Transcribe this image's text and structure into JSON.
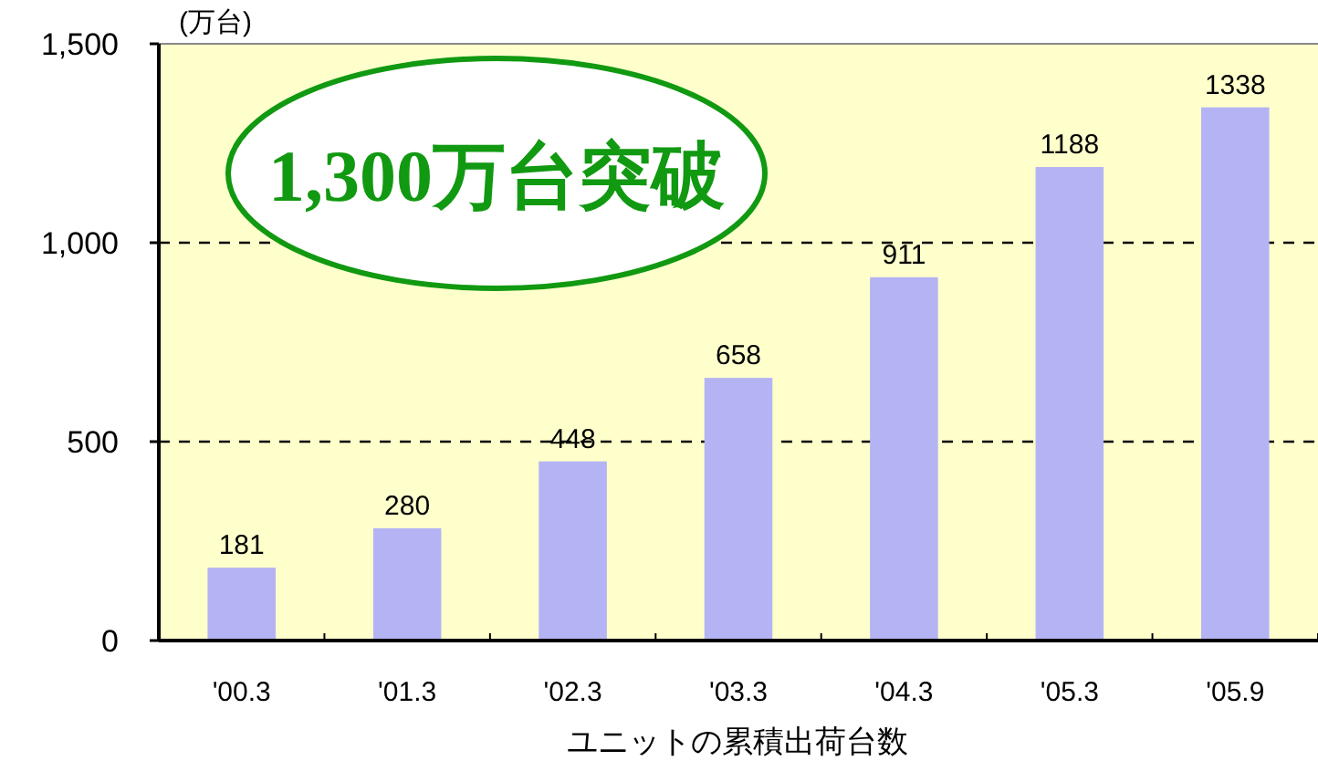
{
  "chart_data": {
    "type": "bar",
    "categories": [
      "'00.3",
      "'01.3",
      "'02.3",
      "'03.3",
      "'04.3",
      "'05.3",
      "'05.9"
    ],
    "values": [
      181,
      280,
      448,
      658,
      911,
      1188,
      1338
    ],
    "color": "#b4b4f4",
    "ylabel": "(万台)",
    "xlabel": "ユニットの累積出荷台数",
    "annotations": [
      "1,300万台突破"
    ],
    "ylim": [
      0,
      1500
    ],
    "yticks": [
      0,
      {
        "value": 500,
        "label": "500"
      },
      {
        "value": 1000,
        "label": "1,000"
      },
      {
        "value": 1500,
        "label": "1,500"
      }
    ],
    "grid": "y",
    "data_labels": true
  }
}
